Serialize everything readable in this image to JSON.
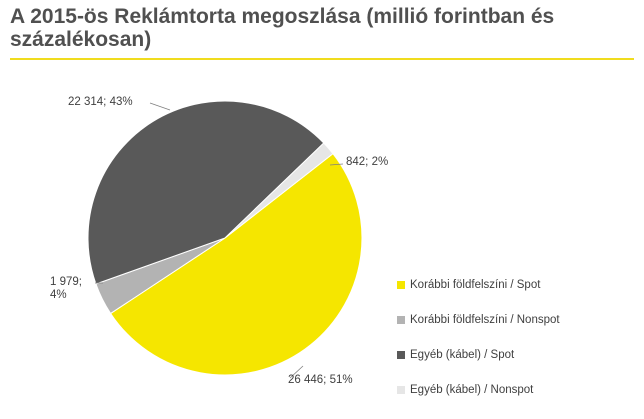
{
  "title": "A 2015-ös Reklámtorta megoszlása (millió forintban és százalékosan)",
  "colors": {
    "accent_rule": "#f0dc1e",
    "slice_1": "#f5e600",
    "slice_2": "#b3b3b3",
    "slice_3": "#595959",
    "slice_4": "#e6e6e6"
  },
  "chart_data": {
    "type": "pie",
    "title": "A 2015-ös Reklámtorta megoszlása (millió forintban és százalékosan)",
    "legend_position": "right",
    "slices": [
      {
        "name": "Korábbi földfelszíni / Spot",
        "value": 26446,
        "percent": 51,
        "label": "26 446; 51%",
        "color": "#f5e600"
      },
      {
        "name": "Korábbi földfelszíni / Nonspot",
        "value": 1979,
        "percent": 4,
        "label_lines": [
          "1 979;",
          "4%"
        ],
        "color": "#b3b3b3"
      },
      {
        "name": "Egyéb (kábel) / Spot",
        "value": 22314,
        "percent": 43,
        "label": "22 314; 43%",
        "color": "#595959"
      },
      {
        "name": "Egyéb (kábel) / Nonspot",
        "value": 842,
        "percent": 2,
        "label": "842; 2%",
        "color": "#e6e6e6"
      }
    ]
  },
  "legend": {
    "items": [
      {
        "label": "Korábbi földfelszíni / Spot",
        "color": "#f5e600"
      },
      {
        "label": "Korábbi földfelszíni / Nonspot",
        "color": "#b3b3b3"
      },
      {
        "label": "Egyéb (kábel) / Spot",
        "color": "#595959"
      },
      {
        "label": "Egyéb (kábel) / Nonspot",
        "color": "#e6e6e6"
      }
    ]
  }
}
